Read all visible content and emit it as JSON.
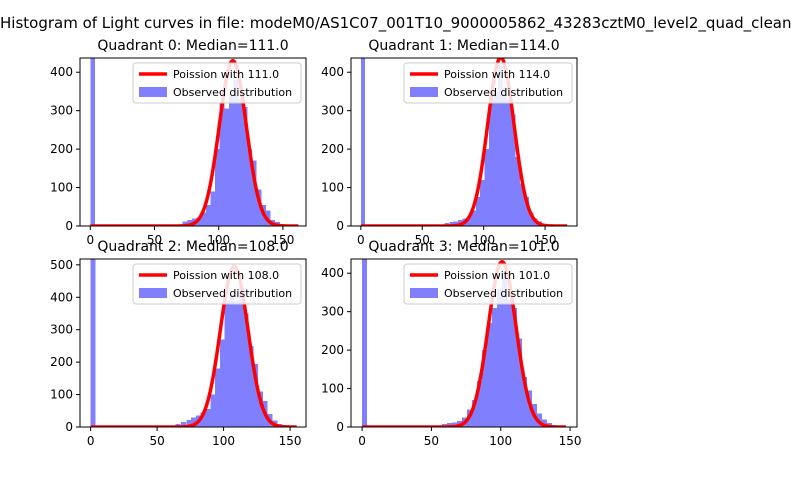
{
  "suptitle": "Histogram of Light curves in file: modeM0/AS1C07_001T10_9000005862_43283cztM0_level2_quad_clean",
  "colors": {
    "fit_line": "#ff0000",
    "hist_fill": "#8080ff"
  },
  "chart_data": [
    {
      "type": "bar",
      "title": "Quadrant 0: Median=111.0",
      "xlim": [
        -8,
        168
      ],
      "ylim": [
        0,
        437
      ],
      "xticks": [
        0,
        50,
        100,
        150
      ],
      "yticks": [
        0,
        100,
        200,
        300,
        400
      ],
      "legend": {
        "placement": "top-right",
        "entries": [
          "Poission with 111.0",
          "Observed distribution"
        ]
      },
      "fit": {
        "name": "Poission with 111.0",
        "mean": 111.0,
        "x_range": [
          0,
          162
        ],
        "peak": 430
      },
      "hist": {
        "bin_width": 3.6,
        "bins": [
          [
            0,
            437
          ],
          [
            72,
            12
          ],
          [
            75.6,
            15
          ],
          [
            79.2,
            20
          ],
          [
            82.8,
            22
          ],
          [
            86.4,
            35
          ],
          [
            90,
            55
          ],
          [
            93.6,
            90
          ],
          [
            97.2,
            200
          ],
          [
            100.8,
            320
          ],
          [
            104.4,
            305
          ],
          [
            108,
            340
          ],
          [
            111.6,
            380
          ],
          [
            115.2,
            330
          ],
          [
            118.8,
            310
          ],
          [
            122.4,
            200
          ],
          [
            126,
            170
          ],
          [
            129.6,
            95
          ],
          [
            133.2,
            55
          ],
          [
            136.8,
            40
          ],
          [
            140.4,
            15
          ],
          [
            144,
            10
          ]
        ]
      }
    },
    {
      "type": "bar",
      "title": "Quadrant 1: Median=114.0",
      "xlim": [
        -8,
        176
      ],
      "ylim": [
        0,
        437
      ],
      "xticks": [
        0,
        50,
        100,
        150
      ],
      "yticks": [
        0,
        100,
        200,
        300,
        400
      ],
      "legend": {
        "placement": "top-right",
        "entries": [
          "Poission with 114.0",
          "Observed distribution"
        ]
      },
      "fit": {
        "name": "Poission with 114.0",
        "mean": 114.0,
        "x_range": [
          0,
          168
        ],
        "peak": 438
      },
      "hist": {
        "bin_width": 3.6,
        "bins": [
          [
            0,
            437
          ],
          [
            68,
            8
          ],
          [
            72,
            10
          ],
          [
            75.6,
            12
          ],
          [
            79.2,
            15
          ],
          [
            82.8,
            20
          ],
          [
            86.4,
            25
          ],
          [
            90,
            40
          ],
          [
            93.6,
            75
          ],
          [
            97.2,
            120
          ],
          [
            100.8,
            200
          ],
          [
            104.4,
            330
          ],
          [
            108,
            350
          ],
          [
            111.6,
            420
          ],
          [
            115.2,
            360
          ],
          [
            118.8,
            330
          ],
          [
            122.4,
            290
          ],
          [
            126,
            180
          ],
          [
            129.6,
            110
          ],
          [
            133.2,
            75
          ],
          [
            136.8,
            35
          ],
          [
            140.4,
            20
          ],
          [
            144,
            12
          ]
        ]
      }
    },
    {
      "type": "bar",
      "title": "Quadrant 2: Median=108.0",
      "xlim": [
        -8,
        162
      ],
      "ylim": [
        0,
        518
      ],
      "xticks": [
        0,
        50,
        100,
        150
      ],
      "yticks": [
        0,
        100,
        200,
        300,
        400,
        500
      ],
      "legend": {
        "placement": "top-right",
        "entries": [
          "Poission with 108.0",
          "Observed distribution"
        ]
      },
      "fit": {
        "name": "Poission with 108.0",
        "mean": 108.0,
        "x_range": [
          0,
          155
        ],
        "peak": 495
      },
      "hist": {
        "bin_width": 3.6,
        "bins": [
          [
            0,
            518
          ],
          [
            64,
            10
          ],
          [
            68,
            15
          ],
          [
            72,
            22
          ],
          [
            75.6,
            30
          ],
          [
            79.2,
            35
          ],
          [
            82.8,
            45
          ],
          [
            86.4,
            55
          ],
          [
            90,
            100
          ],
          [
            93.6,
            180
          ],
          [
            97.2,
            270
          ],
          [
            100.8,
            390
          ],
          [
            104.4,
            410
          ],
          [
            108,
            390
          ],
          [
            111.6,
            430
          ],
          [
            115.2,
            350
          ],
          [
            118.8,
            250
          ],
          [
            122.4,
            195
          ],
          [
            126,
            110
          ],
          [
            129.6,
            80
          ],
          [
            133.2,
            40
          ],
          [
            136.8,
            20
          ],
          [
            140.4,
            10
          ]
        ]
      }
    },
    {
      "type": "bar",
      "title": "Quadrant 3: Median=101.0",
      "xlim": [
        -8,
        155
      ],
      "ylim": [
        0,
        437
      ],
      "xticks": [
        0,
        50,
        100,
        150
      ],
      "yticks": [
        0,
        100,
        200,
        300,
        400
      ],
      "legend": {
        "placement": "top-right",
        "entries": [
          "Poission with 101.0",
          "Observed distribution"
        ]
      },
      "fit": {
        "name": "Poission with 101.0",
        "mean": 101.0,
        "x_range": [
          0,
          147
        ],
        "peak": 430
      },
      "hist": {
        "bin_width": 3.6,
        "bins": [
          [
            0,
            437
          ],
          [
            57.6,
            8
          ],
          [
            61.2,
            10
          ],
          [
            64.8,
            12
          ],
          [
            68.4,
            15
          ],
          [
            72,
            25
          ],
          [
            75.6,
            45
          ],
          [
            79.2,
            70
          ],
          [
            82.8,
            120
          ],
          [
            86.4,
            200
          ],
          [
            90,
            270
          ],
          [
            93.6,
            310
          ],
          [
            97.2,
            360
          ],
          [
            100.8,
            400
          ],
          [
            104.4,
            330
          ],
          [
            108,
            310
          ],
          [
            111.6,
            230
          ],
          [
            115.2,
            130
          ],
          [
            118.8,
            95
          ],
          [
            122.4,
            60
          ],
          [
            126,
            35
          ],
          [
            129.6,
            20
          ],
          [
            133.2,
            10
          ]
        ]
      }
    }
  ]
}
